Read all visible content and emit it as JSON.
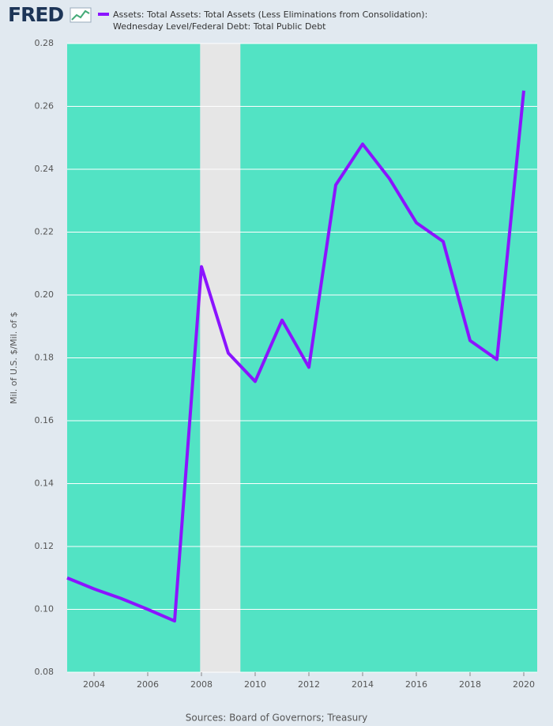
{
  "chart_data": {
    "type": "line",
    "logo": "FRED",
    "y_label": "Mil. of U.S. $/Mil. of $",
    "source": "Sources: Board of Governors; Treasury",
    "x": [
      2003,
      2004,
      2005,
      2006,
      2007,
      2008,
      2009,
      2010,
      2011,
      2012,
      2013,
      2014,
      2015,
      2016,
      2017,
      2018,
      2019,
      2020
    ],
    "series": [
      {
        "name": "Assets: Total Assets: Total Assets (Less Eliminations from Consolidation): Wednesday Level/Federal Debt: Total Public Debt",
        "color": "#8b14ff",
        "values": [
          0.11,
          0.1065,
          0.1035,
          0.1,
          0.0963,
          0.209,
          0.1815,
          0.1725,
          0.192,
          0.177,
          0.235,
          0.248,
          0.237,
          0.223,
          0.217,
          0.1855,
          0.1795,
          0.265
        ]
      }
    ],
    "recession": [
      2007.95,
      2009.45
    ],
    "xlim": [
      2003,
      2020.5
    ],
    "xticks": [
      2004,
      2006,
      2008,
      2010,
      2012,
      2014,
      2016,
      2018,
      2020
    ],
    "ylim": [
      0.08,
      0.28
    ],
    "yticks": [
      0.08,
      {
        "value": 0.1,
        "label": "0.10"
      },
      0.12,
      0.14,
      0.16,
      0.18,
      {
        "value": 0.2,
        "label": "0.20"
      },
      0.22,
      0.24,
      0.26,
      0.28
    ],
    "grid": true,
    "plot_background": "#52e3c4",
    "recession_color": "#e6e6e6"
  }
}
